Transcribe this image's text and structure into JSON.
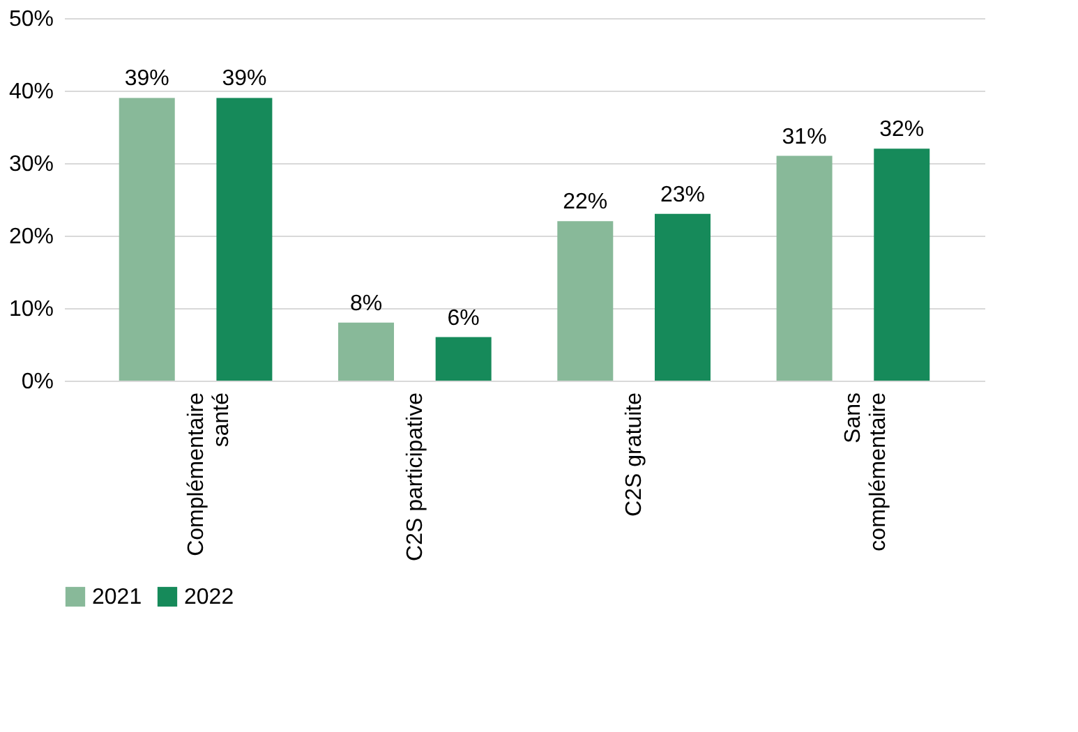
{
  "chart_data": {
    "type": "bar",
    "categories": [
      "Complémentaire santé",
      "C2S participative",
      "C2S gratuite",
      "Sans complémentaire"
    ],
    "series": [
      {
        "name": "2021",
        "color": "#88b999",
        "values": [
          39,
          8,
          22,
          31
        ],
        "value_labels": [
          "39%",
          "8%",
          "22%",
          "31%"
        ]
      },
      {
        "name": "2022",
        "color": "#168a5a",
        "values": [
          39,
          6,
          23,
          32
        ],
        "value_labels": [
          "39%",
          "6%",
          "23%",
          "32%"
        ]
      }
    ],
    "ylim": [
      0,
      50
    ],
    "yticks": [
      {
        "value": 0,
        "label": "0%"
      },
      {
        "value": 10,
        "label": "10%"
      },
      {
        "value": 20,
        "label": "20%"
      },
      {
        "value": 30,
        "label": "30%"
      },
      {
        "value": 40,
        "label": "40%"
      },
      {
        "value": 50,
        "label": "50%"
      }
    ],
    "grid": "y",
    "legend": "bottom"
  }
}
